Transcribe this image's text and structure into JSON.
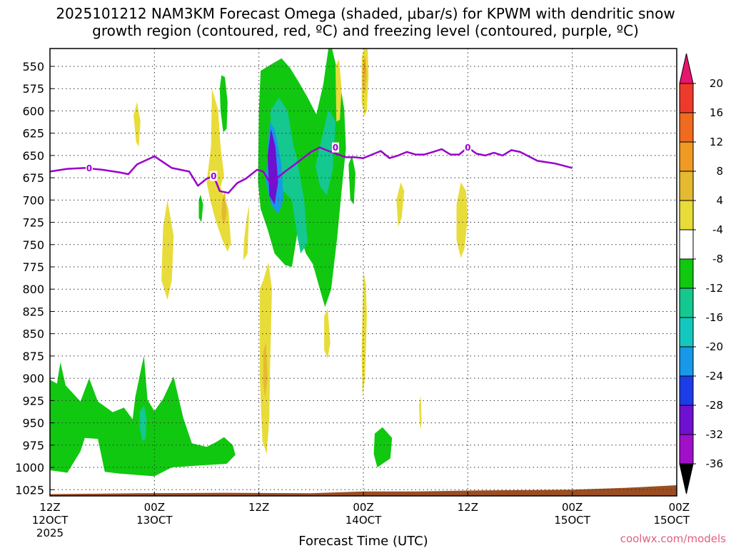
{
  "chart_data": {
    "type": "heatmap",
    "title_line1": "2025101212 NAM3KM Forecast Omega (shaded, μbar/s) for KPWM with dendritic snow",
    "title_line2": "growth region (contoured, red, ºC) and freezing level (contoured, purple, ºC)",
    "xlabel": "Forecast Time (UTC)",
    "source": "coolwx.com/models",
    "x_range_hours": [
      0,
      72
    ],
    "y_range_hpa": [
      530,
      1032
    ],
    "y_ticks": [
      550,
      575,
      600,
      625,
      650,
      675,
      700,
      725,
      750,
      775,
      800,
      825,
      850,
      875,
      900,
      925,
      950,
      975,
      1000,
      1025
    ],
    "y_tick_labels": [
      "550",
      "575",
      "600",
      "625",
      "650",
      "675",
      "700",
      "725",
      "750",
      "775",
      "800",
      "825",
      "850",
      "875",
      "900",
      "925",
      "950",
      "975",
      "1000",
      "1025"
    ],
    "x_ticks": [
      {
        "hour": 0,
        "line1": "12Z",
        "line2": "12OCT",
        "line3": "2025"
      },
      {
        "hour": 12,
        "line1": "00Z",
        "line2": "13OCT",
        "line3": ""
      },
      {
        "hour": 24,
        "line1": "12Z",
        "line2": "",
        "line3": ""
      },
      {
        "hour": 36,
        "line1": "00Z",
        "line2": "14OCT",
        "line3": ""
      },
      {
        "hour": 48,
        "line1": "12Z",
        "line2": "",
        "line3": ""
      },
      {
        "hour": 60,
        "line1": "00Z",
        "line2": "15OCT",
        "line3": ""
      }
    ],
    "colorbar": {
      "labels": [
        "20",
        "16",
        "12",
        "8",
        "4",
        "-4",
        "-8",
        "-12",
        "-16",
        "-20",
        "-24",
        "-28",
        "-32",
        "-36"
      ],
      "colors": [
        "#e8156e",
        "#ee3a2a",
        "#f06a20",
        "#ef9a22",
        "#e5b930",
        "#e8dc3a",
        "#ffffff",
        "#10c810",
        "#14c890",
        "#14c8c0",
        "#1898e8",
        "#1c3ce8",
        "#7010d0",
        "#a010c8",
        "#a8a8a8",
        "#000000"
      ]
    },
    "freezing_level": {
      "label": "0",
      "hours": [
        0,
        2,
        4,
        6,
        8,
        9,
        10,
        12,
        14,
        16,
        17,
        18,
        18.8,
        19.5,
        20.5,
        21.5,
        22.5,
        23.8,
        24.5,
        25.3,
        26,
        27,
        28,
        30,
        31,
        32,
        34,
        35,
        36,
        37,
        38,
        39,
        40,
        41,
        42,
        43,
        44,
        45,
        46,
        47,
        48,
        49,
        50,
        51,
        52,
        53,
        54,
        56,
        58,
        60
      ],
      "hpa": [
        668,
        665,
        664,
        666,
        669,
        671,
        660,
        651,
        664,
        668,
        684,
        676,
        673,
        690,
        692,
        681,
        676,
        666,
        668,
        681,
        676,
        668,
        661,
        646,
        641,
        645,
        652,
        652,
        653,
        649,
        645,
        653,
        650,
        646,
        649,
        649,
        646,
        643,
        649,
        649,
        641,
        648,
        650,
        647,
        650,
        644,
        646,
        656,
        659,
        664
      ]
    },
    "omega_regions": [
      {
        "value": -6,
        "points": [
          [
            -0.1,
            901
          ],
          [
            0.8,
            906
          ],
          [
            1.2,
            882
          ],
          [
            1.8,
            908
          ],
          [
            3.5,
            926
          ],
          [
            4.5,
            900
          ],
          [
            5.5,
            926
          ],
          [
            7.2,
            938
          ],
          [
            8.5,
            933
          ],
          [
            9.5,
            946
          ],
          [
            9.8,
            921
          ],
          [
            10.5,
            888
          ],
          [
            10.8,
            875
          ],
          [
            11.2,
            924
          ],
          [
            12,
            937
          ],
          [
            13,
            923
          ],
          [
            14.2,
            898
          ],
          [
            15.3,
            944
          ],
          [
            16.3,
            973
          ],
          [
            18,
            977
          ],
          [
            19,
            972
          ],
          [
            20,
            966
          ],
          [
            21,
            975
          ],
          [
            21.3,
            986
          ],
          [
            20.3,
            996
          ],
          [
            17,
            998
          ],
          [
            14,
            1000
          ],
          [
            12,
            1010
          ],
          [
            8,
            1007
          ],
          [
            6.3,
            1005
          ],
          [
            5.5,
            968
          ],
          [
            4,
            967
          ],
          [
            3.5,
            982
          ],
          [
            2,
            1006
          ],
          [
            -0.1,
            1003
          ]
        ]
      },
      {
        "value": -6,
        "points": [
          [
            24.2,
            555
          ],
          [
            25.2,
            549
          ],
          [
            26.6,
            541
          ],
          [
            27.6,
            552
          ],
          [
            28.6,
            568
          ],
          [
            29.6,
            585
          ],
          [
            30.6,
            604
          ],
          [
            31.4,
            570
          ],
          [
            32,
            529
          ],
          [
            32.4,
            530
          ],
          [
            33.2,
            563
          ],
          [
            33.8,
            598
          ],
          [
            34,
            642
          ],
          [
            33.5,
            690
          ],
          [
            33,
            742
          ],
          [
            32.6,
            775
          ],
          [
            32.3,
            800
          ],
          [
            31.6,
            820
          ],
          [
            30.8,
            793
          ],
          [
            30.2,
            772
          ],
          [
            29.4,
            760
          ],
          [
            28.5,
            732
          ],
          [
            27.8,
            775
          ],
          [
            27,
            773
          ],
          [
            25.8,
            760
          ],
          [
            25,
            733
          ],
          [
            24.2,
            710
          ],
          [
            23.9,
            680
          ],
          [
            24,
            600
          ]
        ]
      },
      {
        "value": -6,
        "points": [
          [
            19.5,
            575
          ],
          [
            19.7,
            560
          ],
          [
            20.1,
            562
          ],
          [
            20.4,
            590
          ],
          [
            20.3,
            620
          ],
          [
            19.9,
            624
          ],
          [
            19.6,
            600
          ]
        ]
      },
      {
        "value": -6,
        "points": [
          [
            17.1,
            700
          ],
          [
            17.3,
            694
          ],
          [
            17.6,
            705
          ],
          [
            17.4,
            725
          ],
          [
            17.1,
            720
          ]
        ]
      },
      {
        "value": -6,
        "points": [
          [
            34.3,
            660
          ],
          [
            34.7,
            650
          ],
          [
            35.1,
            670
          ],
          [
            34.9,
            705
          ],
          [
            34.5,
            700
          ]
        ]
      },
      {
        "value": -6,
        "points": [
          [
            37.3,
            962
          ],
          [
            38.2,
            955
          ],
          [
            39.3,
            967
          ],
          [
            39.1,
            990
          ],
          [
            37.6,
            1000
          ],
          [
            37.2,
            985
          ]
        ]
      },
      {
        "value": -10,
        "points": [
          [
            25.3,
            600
          ],
          [
            26.3,
            585
          ],
          [
            27.3,
            600
          ],
          [
            28,
            640
          ],
          [
            28.3,
            650
          ],
          [
            29.2,
            700
          ],
          [
            29.6,
            748
          ],
          [
            28.8,
            760
          ],
          [
            28.4,
            740
          ],
          [
            27.8,
            700
          ],
          [
            26.8,
            690
          ],
          [
            26.1,
            660
          ],
          [
            25.5,
            640
          ]
        ]
      },
      {
        "value": -10,
        "points": [
          [
            31,
            640
          ],
          [
            32,
            598
          ],
          [
            32.8,
            612
          ],
          [
            32.5,
            665
          ],
          [
            31.8,
            695
          ],
          [
            31,
            684
          ],
          [
            30.5,
            662
          ]
        ]
      },
      {
        "value": -10,
        "points": [
          [
            10.3,
            938
          ],
          [
            10.8,
            930
          ],
          [
            11.1,
            945
          ],
          [
            11,
            968
          ],
          [
            10.6,
            970
          ],
          [
            10.3,
            955
          ]
        ]
      },
      {
        "value": -18,
        "points": [
          [
            25.2,
            612
          ],
          [
            25.8,
            620
          ],
          [
            26.6,
            660
          ],
          [
            26.8,
            700
          ],
          [
            26.2,
            716
          ],
          [
            25.4,
            705
          ],
          [
            24.8,
            680
          ]
        ]
      },
      {
        "value": -26,
        "points": [
          [
            25.4,
            620
          ],
          [
            25.9,
            640
          ],
          [
            26.2,
            680
          ],
          [
            25.8,
            705
          ],
          [
            25.2,
            695
          ],
          [
            25,
            650
          ]
        ]
      },
      {
        "value": 6,
        "points": [
          [
            9.6,
            605
          ],
          [
            10,
            590
          ],
          [
            10.4,
            612
          ],
          [
            10.2,
            640
          ],
          [
            9.9,
            635
          ]
        ]
      },
      {
        "value": 6,
        "points": [
          [
            13,
            730
          ],
          [
            13.5,
            700
          ],
          [
            14.2,
            740
          ],
          [
            14,
            790
          ],
          [
            13.5,
            812
          ],
          [
            12.8,
            790
          ]
        ]
      },
      {
        "value": 6,
        "points": [
          [
            18.6,
            575
          ],
          [
            19.3,
            598
          ],
          [
            19.6,
            640
          ],
          [
            20,
            672
          ],
          [
            19.6,
            685
          ],
          [
            20.5,
            710
          ],
          [
            20.8,
            748
          ],
          [
            20.4,
            758
          ],
          [
            19.8,
            745
          ],
          [
            19,
            722
          ],
          [
            18.4,
            700
          ],
          [
            18,
            680
          ],
          [
            18.5,
            640
          ]
        ]
      },
      {
        "value": 6,
        "points": [
          [
            22.3,
            745
          ],
          [
            22.6,
            720
          ],
          [
            22.9,
            705
          ],
          [
            22.7,
            760
          ],
          [
            22.2,
            768
          ]
        ]
      },
      {
        "value": 6,
        "points": [
          [
            24.1,
            800
          ],
          [
            24.5,
            790
          ],
          [
            25.1,
            770
          ],
          [
            25.5,
            800
          ],
          [
            25.3,
            880
          ],
          [
            25.2,
            945
          ],
          [
            24.9,
            985
          ],
          [
            24.4,
            970
          ],
          [
            24.1,
            900
          ]
        ]
      },
      {
        "value": 6,
        "points": [
          [
            31.5,
            830
          ],
          [
            31.9,
            822
          ],
          [
            32.2,
            860
          ],
          [
            31.9,
            878
          ],
          [
            31.5,
            868
          ]
        ]
      },
      {
        "value": 6,
        "points": [
          [
            32.8,
            550
          ],
          [
            33.2,
            542
          ],
          [
            33.5,
            575
          ],
          [
            33.3,
            610
          ],
          [
            32.9,
            612
          ]
        ]
      },
      {
        "value": 6,
        "points": [
          [
            35.8,
            540
          ],
          [
            36.1,
            530
          ],
          [
            36.5,
            530
          ],
          [
            36.6,
            560
          ],
          [
            36.4,
            600
          ],
          [
            36.1,
            606
          ],
          [
            35.8,
            590
          ]
        ]
      },
      {
        "value": 6,
        "points": [
          [
            36,
            780
          ],
          [
            36.3,
            795
          ],
          [
            36.4,
            830
          ],
          [
            36.2,
            900
          ],
          [
            35.9,
            920
          ],
          [
            35.8,
            870
          ]
        ]
      },
      {
        "value": 6,
        "points": [
          [
            39.8,
            700
          ],
          [
            40.3,
            680
          ],
          [
            40.7,
            690
          ],
          [
            40.4,
            720
          ],
          [
            40,
            730
          ]
        ]
      },
      {
        "value": 6,
        "points": [
          [
            42.4,
            930
          ],
          [
            42.6,
            920
          ],
          [
            42.7,
            950
          ],
          [
            42.5,
            957
          ]
        ]
      },
      {
        "value": 6,
        "points": [
          [
            46.7,
            705
          ],
          [
            47.2,
            680
          ],
          [
            47.8,
            690
          ],
          [
            48,
            720
          ],
          [
            47.6,
            755
          ],
          [
            47.2,
            765
          ],
          [
            46.7,
            745
          ]
        ]
      },
      {
        "value": 10,
        "points": [
          [
            35.9,
            550
          ],
          [
            36.2,
            538
          ],
          [
            36.4,
            560
          ],
          [
            36.2,
            580
          ],
          [
            35.9,
            575
          ]
        ]
      },
      {
        "value": 10,
        "points": [
          [
            19.8,
            700
          ],
          [
            20.1,
            690
          ],
          [
            20.3,
            715
          ],
          [
            20,
            728
          ],
          [
            19.7,
            718
          ]
        ]
      },
      {
        "value": 10,
        "points": [
          [
            24.5,
            870
          ],
          [
            24.8,
            860
          ],
          [
            25,
            900
          ],
          [
            24.7,
            922
          ],
          [
            24.5,
            905
          ]
        ]
      },
      {
        "value": 14,
        "points": [
          [
            36,
            545
          ],
          [
            36.2,
            540
          ],
          [
            36.3,
            555
          ],
          [
            36.1,
            560
          ]
        ]
      }
    ],
    "ground_surface": {
      "hours": [
        0,
        10,
        20,
        30,
        36,
        42,
        48,
        54,
        60,
        66,
        72
      ],
      "hpa": [
        1030,
        1029,
        1028.5,
        1029,
        1027,
        1027,
        1026,
        1025.5,
        1025,
        1023,
        1020
      ]
    }
  }
}
